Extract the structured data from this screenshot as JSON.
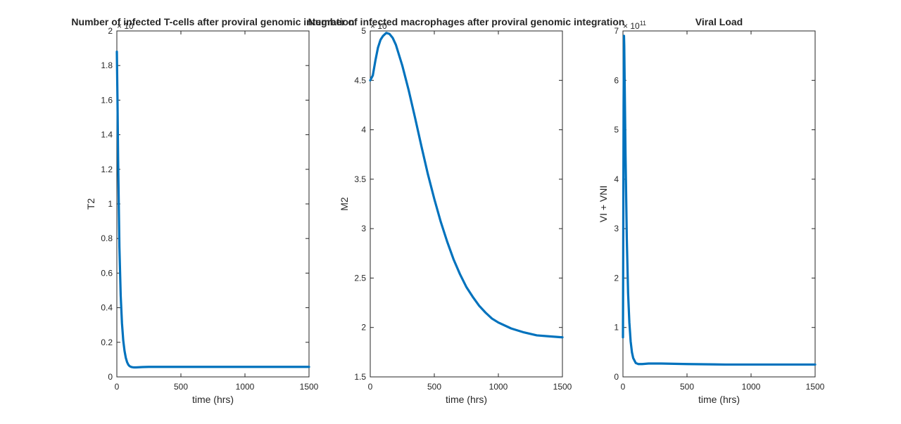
{
  "figure": {
    "background": "#ffffff",
    "line_color": "#0072bd",
    "axis_color": "#262626"
  },
  "chart_data": [
    {
      "type": "line",
      "title": "Number of infected T-cells after proviral genomic integration",
      "xlabel": "time (hrs)",
      "ylabel": "T2",
      "exponent_label": "× 10",
      "xlim": [
        0,
        1500
      ],
      "ylim": [
        0,
        2
      ],
      "xticks": [
        0,
        500,
        1000,
        1500
      ],
      "yticks": [
        0,
        0.2,
        0.4,
        0.6,
        0.8,
        1,
        1.2,
        1.4,
        1.6,
        1.8,
        2
      ],
      "grid": false,
      "series": [
        {
          "x": [
            0,
            5,
            10,
            20,
            30,
            40,
            50,
            60,
            70,
            80,
            90,
            100,
            110,
            120,
            130,
            150,
            175,
            200,
            250,
            300,
            400,
            500,
            700,
            1000,
            1200,
            1500
          ],
          "values": [
            1.88,
            1.6,
            1.25,
            0.75,
            0.47,
            0.31,
            0.21,
            0.15,
            0.11,
            0.085,
            0.07,
            0.062,
            0.058,
            0.056,
            0.055,
            0.055,
            0.056,
            0.057,
            0.058,
            0.058,
            0.058,
            0.058,
            0.058,
            0.058,
            0.058,
            0.058
          ]
        }
      ]
    },
    {
      "type": "line",
      "title": "Number of infected macrophages after proviral genomic integration",
      "xlabel": "time (hrs)",
      "ylabel": "M2",
      "exponent_label": "× 10",
      "xlim": [
        0,
        1500
      ],
      "ylim": [
        1.5,
        5
      ],
      "xticks": [
        0,
        500,
        1000,
        1500
      ],
      "yticks": [
        1.5,
        2,
        2.5,
        3,
        3.5,
        4,
        4.5,
        5
      ],
      "grid": false,
      "series": [
        {
          "x": [
            0,
            20,
            40,
            60,
            80,
            100,
            125,
            150,
            175,
            200,
            250,
            300,
            350,
            400,
            450,
            500,
            550,
            600,
            650,
            700,
            750,
            800,
            850,
            900,
            950,
            1000,
            1100,
            1200,
            1300,
            1400,
            1500
          ],
          "values": [
            4.5,
            4.55,
            4.7,
            4.83,
            4.91,
            4.95,
            4.98,
            4.97,
            4.93,
            4.86,
            4.65,
            4.4,
            4.12,
            3.83,
            3.55,
            3.3,
            3.07,
            2.87,
            2.69,
            2.54,
            2.41,
            2.31,
            2.22,
            2.15,
            2.09,
            2.05,
            1.99,
            1.95,
            1.92,
            1.91,
            1.9
          ]
        }
      ]
    },
    {
      "type": "line",
      "title": "Viral Load",
      "xlabel": "time (hrs)",
      "ylabel": "VI + VNI",
      "exponent_label": "× 10",
      "exponent": "11",
      "xlim": [
        0,
        1500
      ],
      "ylim": [
        0,
        7
      ],
      "xticks": [
        0,
        500,
        1000,
        1500
      ],
      "yticks": [
        0,
        1,
        2,
        3,
        4,
        5,
        6,
        7
      ],
      "grid": false,
      "series": [
        {
          "x": [
            0,
            2,
            5,
            8,
            10,
            15,
            20,
            30,
            40,
            50,
            60,
            70,
            80,
            100,
            120,
            150,
            200,
            300,
            500,
            800,
            1000,
            1200,
            1500
          ],
          "values": [
            0.8,
            2.5,
            5.5,
            6.9,
            6.7,
            5.6,
            4.5,
            2.8,
            1.7,
            1.1,
            0.72,
            0.5,
            0.38,
            0.28,
            0.26,
            0.26,
            0.27,
            0.27,
            0.26,
            0.25,
            0.25,
            0.25,
            0.25
          ]
        }
      ]
    }
  ]
}
